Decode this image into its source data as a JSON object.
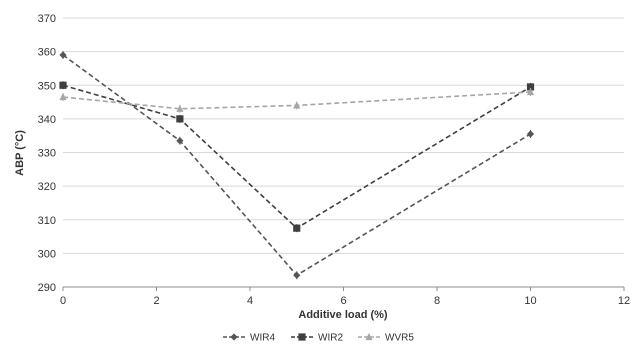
{
  "chart_data": {
    "type": "line",
    "title": "",
    "xlabel": "Additive load (%)",
    "ylabel": "ABP (°C)",
    "xlim": [
      0,
      12
    ],
    "ylim": [
      290,
      370
    ],
    "x_ticks": [
      0,
      2,
      4,
      6,
      8,
      10,
      12
    ],
    "y_ticks": [
      290,
      300,
      310,
      320,
      330,
      340,
      350,
      360,
      370
    ],
    "grid": "horizontal",
    "legend_position": "bottom",
    "series": [
      {
        "name": "WIR4",
        "marker": "diamond",
        "color": "#555555",
        "x": [
          0,
          2.5,
          5,
          10
        ],
        "y": [
          359,
          333.5,
          293.5,
          335.5
        ]
      },
      {
        "name": "WIR2",
        "marker": "square",
        "color": "#3f3f3f",
        "x": [
          0,
          2.5,
          5,
          10
        ],
        "y": [
          350,
          340,
          307.5,
          349.5
        ]
      },
      {
        "name": "WVR5",
        "marker": "triangle",
        "color": "#a6a6a6",
        "x": [
          0,
          2.5,
          5,
          10
        ],
        "y": [
          346.5,
          343,
          344,
          348
        ]
      }
    ]
  }
}
